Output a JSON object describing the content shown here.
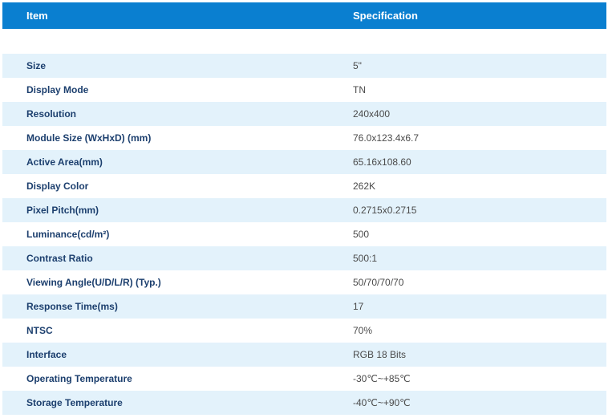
{
  "table": {
    "headers": {
      "item": "Item",
      "specification": "Specification"
    },
    "rows": [
      {
        "item": "Size",
        "value": "5\""
      },
      {
        "item": "Display Mode",
        "value": "TN"
      },
      {
        "item": "Resolution",
        "value": "240x400"
      },
      {
        "item": "Module Size (WxHxD) (mm)",
        "value": "76.0x123.4x6.7"
      },
      {
        "item": "Active Area(mm)",
        "value": "65.16x108.60"
      },
      {
        "item": "Display Color",
        "value": "262K"
      },
      {
        "item": "Pixel Pitch(mm)",
        "value": "0.2715x0.2715"
      },
      {
        "item": "Luminance(cd/m²)",
        "value": "500"
      },
      {
        "item": "Contrast Ratio",
        "value": "500:1"
      },
      {
        "item": "Viewing Angle(U/D/L/R) (Typ.)",
        "value": "50/70/70/70"
      },
      {
        "item": "Response Time(ms)",
        "value": "17"
      },
      {
        "item": "NTSC",
        "value": "70%"
      },
      {
        "item": "Interface",
        "value": "RGB 18 Bits"
      },
      {
        "item": "Operating Temperature",
        "value": "-30℃~+85℃"
      },
      {
        "item": "Storage Temperature",
        "value": "-40℃~+90℃"
      }
    ]
  }
}
